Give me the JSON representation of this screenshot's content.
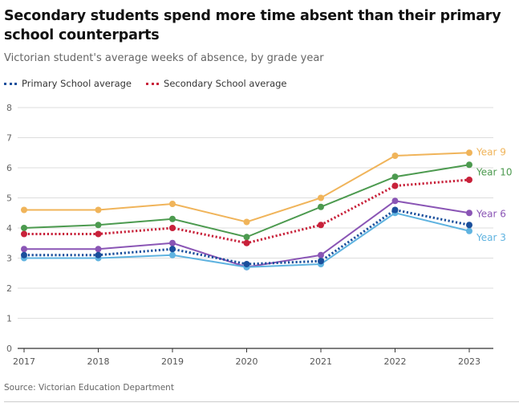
{
  "header": {
    "title": "Secondary students spend more time absent than their primary school counterparts",
    "subtitle": "Victorian student's average weeks of absence, by grade year"
  },
  "legend": [
    {
      "label": "Primary School average",
      "color": "#1a4f9c"
    },
    {
      "label": "Secondary School average",
      "color": "#c8213a"
    }
  ],
  "source": "Source: Victorian Education Department",
  "chart_data": {
    "type": "line",
    "x": [
      2017,
      2018,
      2019,
      2020,
      2021,
      2022,
      2023
    ],
    "ylim": [
      0,
      8
    ],
    "yticks": [
      0,
      1,
      2,
      3,
      4,
      5,
      6,
      7,
      8
    ],
    "grid": true,
    "legend_position": "top-left",
    "series": [
      {
        "name": "Year 9",
        "color": "#f0b45a",
        "style": "solid",
        "values": [
          4.6,
          4.6,
          4.8,
          4.2,
          5.0,
          6.4,
          6.5
        ]
      },
      {
        "name": "Year 10",
        "color": "#4c9a4f",
        "style": "solid",
        "values": [
          4.0,
          4.1,
          4.3,
          3.7,
          4.7,
          5.7,
          6.1
        ]
      },
      {
        "name": "Secondary School average",
        "color": "#c8213a",
        "style": "dotted",
        "values": [
          3.8,
          3.8,
          4.0,
          3.5,
          4.1,
          5.4,
          5.6
        ]
      },
      {
        "name": "Year 6",
        "color": "#8a55b5",
        "style": "solid",
        "values": [
          3.3,
          3.3,
          3.5,
          2.7,
          3.1,
          4.9,
          4.5
        ]
      },
      {
        "name": "Year 3",
        "color": "#5fb3e0",
        "style": "solid",
        "values": [
          3.0,
          3.0,
          3.1,
          2.7,
          2.8,
          4.5,
          3.9
        ]
      },
      {
        "name": "Primary School average",
        "color": "#1a4f9c",
        "style": "dotted",
        "values": [
          3.1,
          3.1,
          3.3,
          2.8,
          2.9,
          4.6,
          4.1
        ]
      }
    ],
    "end_labels": [
      {
        "series": "Year 9",
        "text": "Year 9"
      },
      {
        "series": "Year 10",
        "text": "Year 10"
      },
      {
        "series": "Year 6",
        "text": "Year 6"
      },
      {
        "series": "Year 3",
        "text": "Year 3"
      }
    ]
  }
}
